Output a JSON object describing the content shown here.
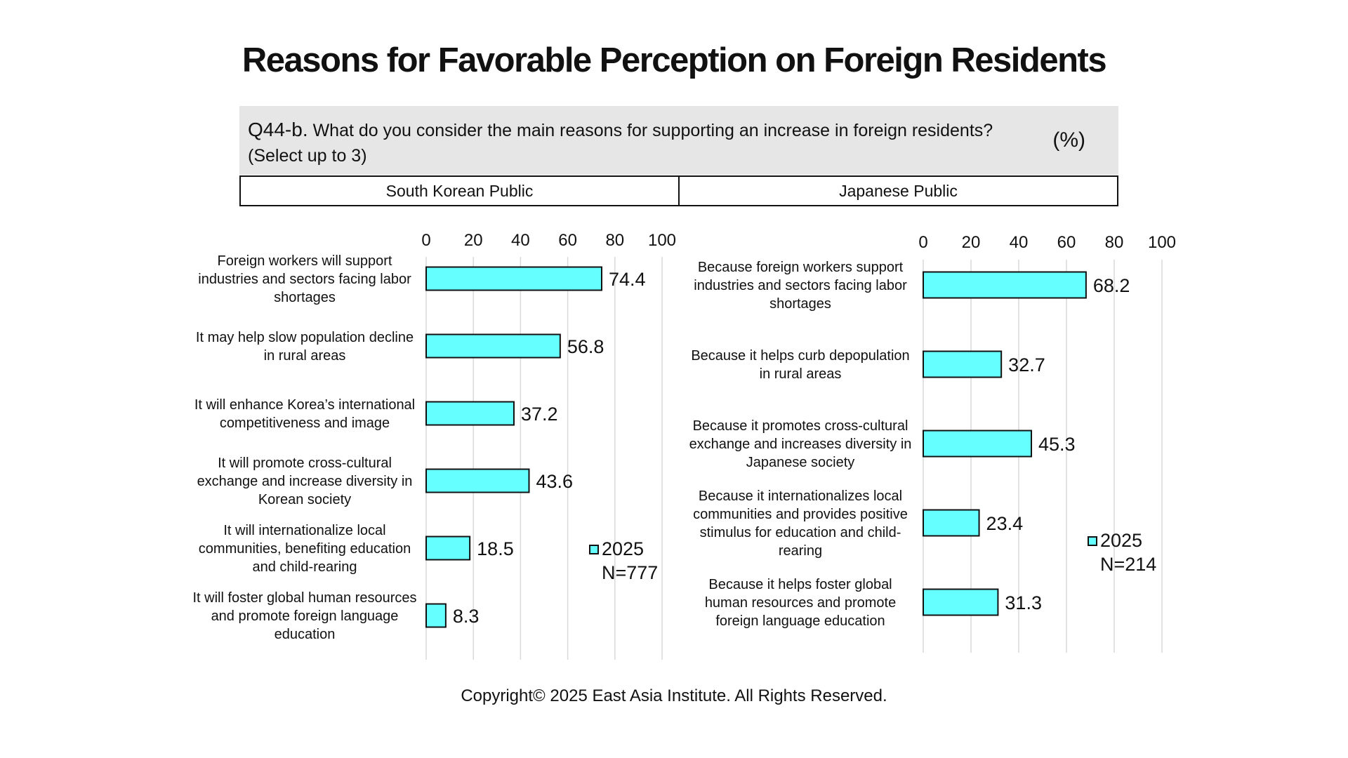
{
  "header": {
    "title": "Reasons for Favorable Perception on Foreign Residents",
    "question_label": "Q44-b.",
    "question_text": "What do you consider the main reasons for supporting an increase in foreign residents?",
    "question_note": "(Select up to 3)",
    "unit": "(%)"
  },
  "panels": [
    "South Korean Public",
    "Japanese Public"
  ],
  "footer": {
    "copyright": "Copyright© 2025 East Asia Institute. All Rights Reserved."
  },
  "colors": {
    "bar_fill": "#66ffff",
    "bar_stroke": "#111111",
    "grid": "#d9d9d9",
    "question_bg": "#e6e6e6"
  },
  "chart_data": [
    {
      "type": "bar",
      "orientation": "horizontal",
      "categories": [
        "Foreign workers will support industries and sectors facing labor shortages",
        "It may help slow population decline in rural areas",
        "It will enhance Korea’s international competitiveness and image",
        "It will promote cross-cultural exchange and increase diversity in Korean society",
        "It will internationalize local communities, benefiting education and child-rearing",
        "It will foster global human resources and promote foreign language education"
      ],
      "category_lines": [
        [
          "Foreign workers will support",
          "industries and sectors facing labor",
          "shortages"
        ],
        [
          "It may help slow population decline",
          "in rural areas"
        ],
        [
          "It will enhance Korea’s international",
          "competitiveness and image"
        ],
        [
          "It will promote cross-cultural",
          "exchange and increase diversity in",
          "Korean society"
        ],
        [
          "It will internationalize local",
          "communities, benefiting education",
          "and child-rearing"
        ],
        [
          "It will foster global human resources",
          "and promote foreign language",
          "education"
        ]
      ],
      "series": [
        {
          "name": "2025",
          "values": [
            74.4,
            56.8,
            37.2,
            43.6,
            18.5,
            8.3
          ]
        }
      ],
      "xlim": [
        0,
        100
      ],
      "ticks": [
        0,
        20,
        40,
        60,
        80,
        100
      ],
      "legend": {
        "label": "2025",
        "n": "N=777",
        "placement": "right"
      },
      "grid": true
    },
    {
      "type": "bar",
      "orientation": "horizontal",
      "categories": [
        "Because foreign workers support industries and sectors facing labor shortages",
        "Because it helps curb depopulation in rural areas",
        "Because it promotes cross-cultural exchange and increases diversity in Japanese society",
        "Because it internationalizes local communities and provides positive stimulus for education and child-rearing",
        "Because it helps foster global human resources and promote foreign language education"
      ],
      "category_lines": [
        [
          "Because foreign workers support",
          "industries and sectors facing labor",
          "shortages"
        ],
        [
          "Because it helps curb depopulation",
          "in rural areas"
        ],
        [
          "Because it promotes cross-cultural",
          "exchange and increases diversity in",
          "Japanese society"
        ],
        [
          "Because it internationalizes local",
          "communities and provides positive",
          "stimulus for education and child-",
          "rearing"
        ],
        [
          "Because it helps foster global",
          "human resources and promote",
          "foreign language education"
        ]
      ],
      "series": [
        {
          "name": "2025",
          "values": [
            68.2,
            32.7,
            45.3,
            23.4,
            31.3
          ]
        }
      ],
      "xlim": [
        0,
        100
      ],
      "ticks": [
        0,
        20,
        40,
        60,
        80,
        100
      ],
      "legend": {
        "label": "2025",
        "n": "N=214",
        "placement": "right"
      },
      "grid": true
    }
  ]
}
